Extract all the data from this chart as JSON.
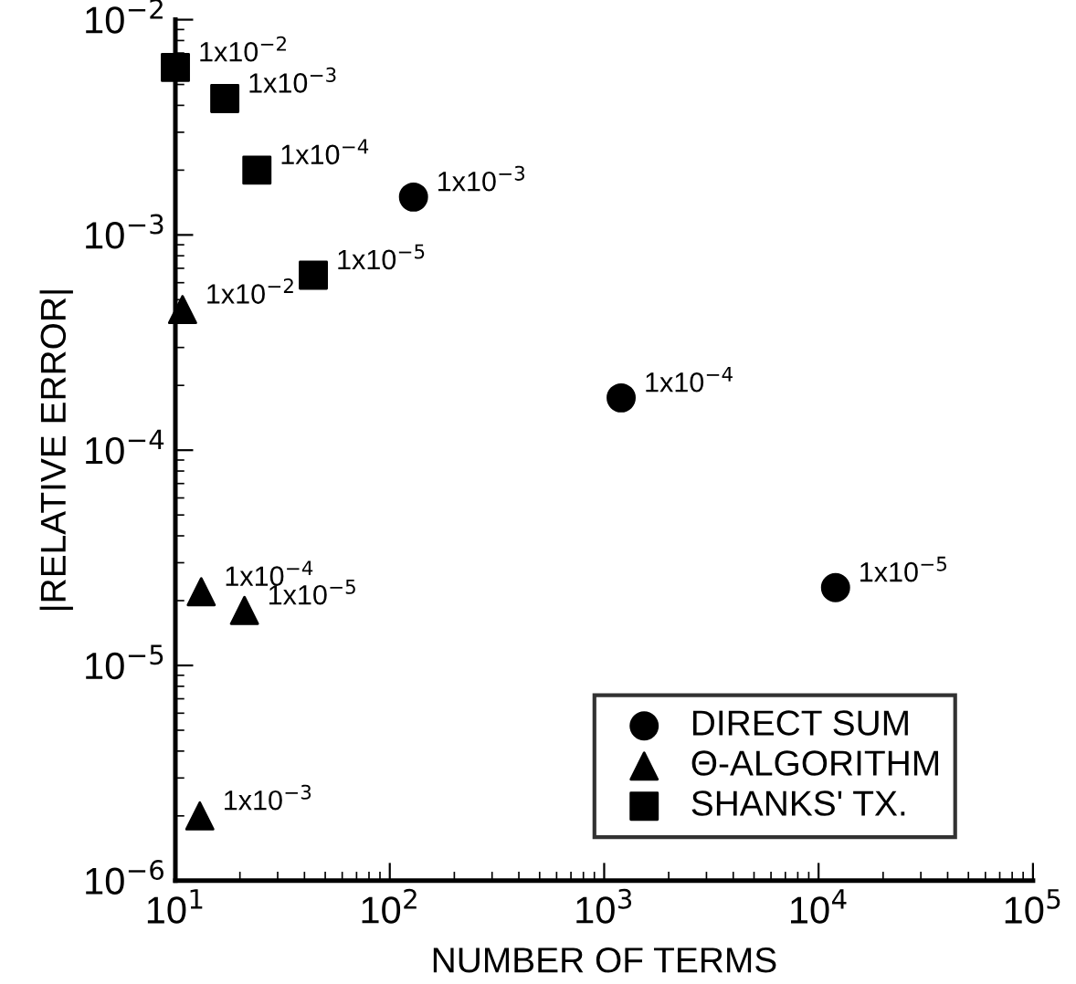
{
  "chart_data": {
    "type": "scatter",
    "xlabel": "NUMBER OF TERMS",
    "ylabel": "|RELATIVE ERROR|",
    "log": "xy",
    "xlim": [
      10,
      100000
    ],
    "ylim": [
      1e-06,
      0.01
    ],
    "xticks": [
      {
        "value": 10,
        "label": "10$^{1}$"
      },
      {
        "value": 100,
        "label": "10$^{2}$"
      },
      {
        "value": 1000,
        "label": "10$^{3}$"
      },
      {
        "value": 10000,
        "label": "10$^{4}$"
      },
      {
        "value": 100000,
        "label": "10$^{5}$"
      }
    ],
    "yticks": [
      {
        "value": 1e-06,
        "label": "10$^{−6}$"
      },
      {
        "value": 1e-05,
        "label": "10$^{−5}$"
      },
      {
        "value": 0.0001,
        "label": "10$^{−4}$"
      },
      {
        "value": 0.001,
        "label": "10$^{−3}$"
      },
      {
        "value": 0.01,
        "label": "10$^{−2}$"
      }
    ],
    "grid": false,
    "legend": "bottom right",
    "series": [
      {
        "name": "DIRECT SUM",
        "color": "#000000",
        "marker": "circle",
        "x": [
          129,
          1200,
          12000
        ],
        "values": [
          0.0015,
          0.000175,
          2.3e-05
        ]
      },
      {
        "name": "Θ-ALGORITHM",
        "color": "#000000",
        "marker": "triangle",
        "x": [
          10.8,
          13.2,
          21,
          13
        ],
        "values": [
          0.00045,
          2.2e-05,
          1.8e-05,
          2e-06
        ]
      },
      {
        "name": "SHANKS' TX.",
        "color": "#000000",
        "marker": "square",
        "x": [
          10,
          17,
          24,
          44
        ],
        "values": [
          0.006,
          0.0043,
          0.002,
          0.00065
        ]
      }
    ],
    "annotations": [
      {
        "text": "1x10$^{−3}$",
        "x": 129,
        "y": 0.0015
      },
      {
        "text": "1x10$^{−4}$",
        "x": 1200,
        "y": 0.000175
      },
      {
        "text": "1x10$^{−5}$",
        "x": 12000,
        "y": 2.3e-05
      },
      {
        "text": "1x10$^{−2}$",
        "x": 10.8,
        "y": 0.00045
      },
      {
        "text": "1x10$^{−4}$",
        "x": 13.2,
        "y": 2.2e-05
      },
      {
        "text": "1x10$^{−5}$",
        "x": 21,
        "y": 1.8e-05
      },
      {
        "text": "1x10$^{−3}$",
        "x": 13,
        "y": 2e-06
      },
      {
        "text": "1x10$^{−2}$",
        "x": 10,
        "y": 0.006
      },
      {
        "text": "1x10$^{−3}$",
        "x": 17,
        "y": 0.0043
      },
      {
        "text": "1x10$^{−4}$",
        "x": 24,
        "y": 0.002
      },
      {
        "text": "1x10$^{−5}$",
        "x": 44,
        "y": 0.00065
      }
    ]
  }
}
